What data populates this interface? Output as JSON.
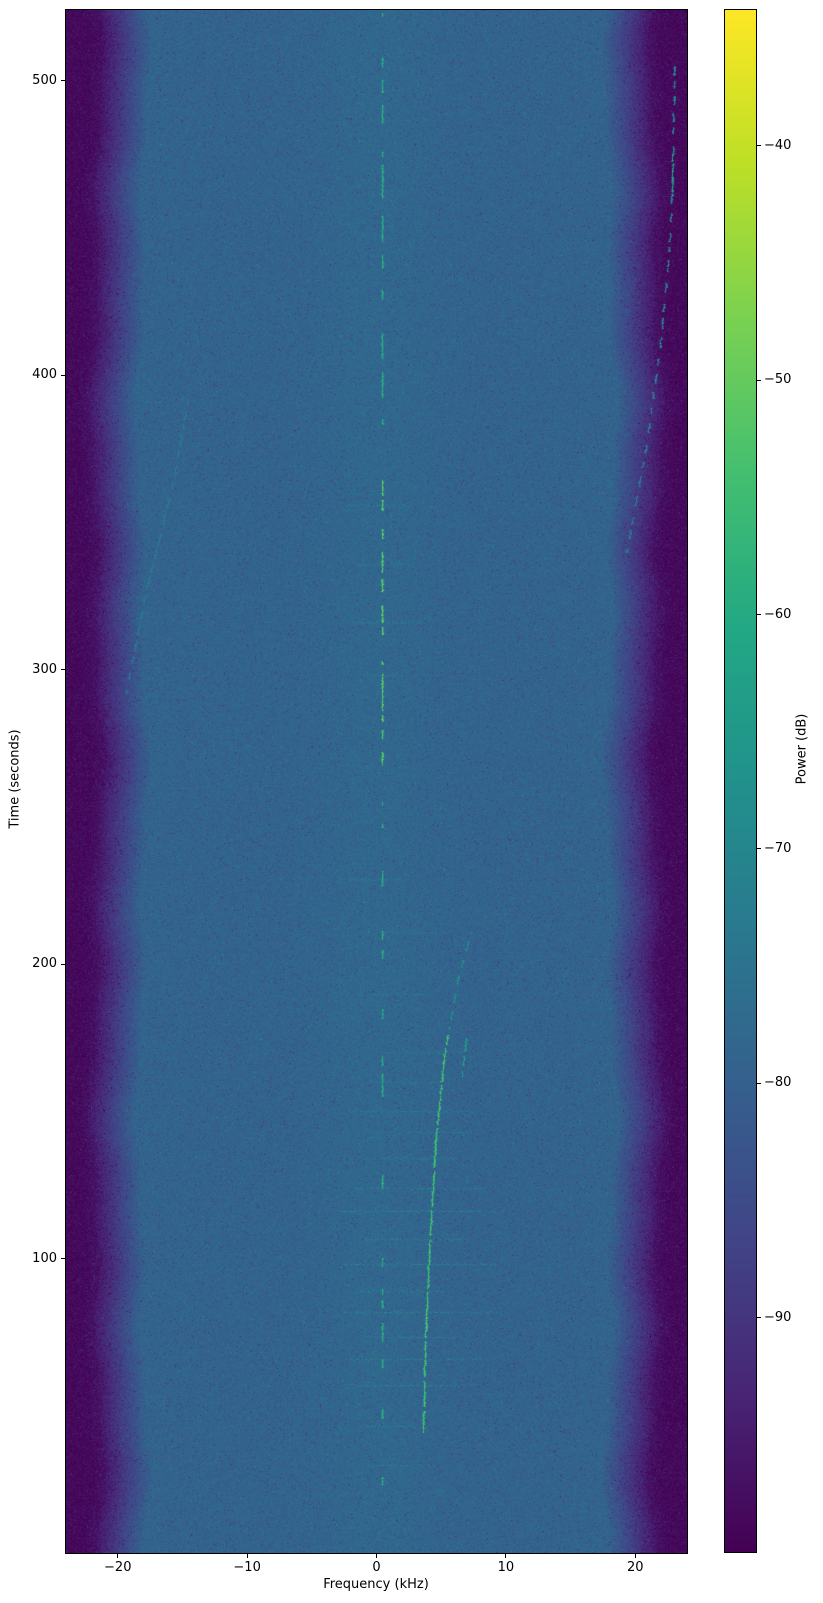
{
  "chart_data": {
    "type": "heatmap",
    "subtype": "spectrogram",
    "title": "",
    "xlabel": "Frequency (kHz)",
    "ylabel": "Time (seconds)",
    "xlim": [
      -24,
      24
    ],
    "ylim": [
      0,
      524
    ],
    "grid": false,
    "x_ticks": {
      "values": [
        -20,
        -10,
        0,
        10,
        20
      ],
      "labels": [
        "−20",
        "−10",
        "0",
        "10",
        "20"
      ]
    },
    "y_ticks": {
      "values": [
        100,
        200,
        300,
        400,
        500
      ],
      "labels": [
        "100",
        "200",
        "300",
        "400",
        "500"
      ]
    },
    "colorbar": {
      "label": "Power (dB)",
      "position": "right",
      "lim": [
        -100,
        -34.2
      ],
      "ticks": {
        "values": [
          -40,
          -50,
          -60,
          -70,
          -80,
          -90
        ],
        "labels": [
          "−40",
          "−50",
          "−60",
          "−70",
          "−80",
          "−90"
        ]
      },
      "colormap": "viridis"
    },
    "colormap_stops": [
      "#440154",
      "#482475",
      "#414487",
      "#355f8d",
      "#2a788e",
      "#21918c",
      "#22a884",
      "#44bf70",
      "#7ad151",
      "#bddf26",
      "#fde725"
    ],
    "noise": {
      "floor_db": -79,
      "sigma_db": 2.8,
      "passband_edge_khz": 18.0,
      "stopband_edge_khz": 21.6,
      "stopband_db": -96.5
    },
    "features": {
      "carrier_line": {
        "freq_khz": 0.45,
        "t_range_s": [
          2,
          523
        ],
        "db_bright": -51,
        "db_typical": -59,
        "bright_t_range_s": [
          268,
          368
        ]
      },
      "chirps": [
        {
          "name": "main-chirp",
          "db": -54,
          "jit": 6,
          "dash": [
            22,
            30,
            1,
            2
          ],
          "points": [
            [
              3.6,
              41
            ],
            [
              3.75,
              72
            ],
            [
              4.1,
              106
            ],
            [
              4.55,
              140
            ],
            [
              5.2,
              168
            ],
            [
              5.5,
              176
            ]
          ]
        },
        {
          "name": "main-chirp-continuation",
          "db": -67,
          "jit": 4,
          "dash": [
            4,
            6,
            3,
            6
          ],
          "points": [
            [
              5.6,
              178
            ],
            [
              6.3,
              196
            ],
            [
              7.3,
              211
            ]
          ]
        },
        {
          "name": "parallel-dash",
          "db": -64,
          "jit": 4,
          "dash": [
            6,
            8,
            2,
            4
          ],
          "points": [
            [
              6.6,
              162
            ],
            [
              6.9,
              175
            ]
          ]
        },
        {
          "name": "left-chirp",
          "db": -72,
          "jit": 3,
          "dash": [
            4,
            7,
            2,
            7
          ],
          "points": [
            [
              -19.4,
              292
            ],
            [
              -17.8,
              327
            ],
            [
              -15.7,
              364
            ],
            [
              -14.6,
              392
            ]
          ]
        },
        {
          "name": "right-chirp",
          "db": -71,
          "jit": 3,
          "dash": [
            4,
            7,
            3,
            8
          ],
          "points": [
            [
              19.3,
              340
            ],
            [
              20.8,
              375
            ],
            [
              21.9,
              410
            ],
            [
              22.6,
              442
            ],
            [
              22.9,
              470
            ],
            [
              23.0,
              505
            ]
          ]
        },
        {
          "name": "right-bright-dash",
          "db": -62,
          "jit": 3,
          "dash": [
            10,
            14,
            2,
            3
          ],
          "points": [
            [
              22.85,
              461
            ],
            [
              22.85,
              475
            ]
          ]
        }
      ],
      "sidebands": [
        [
          30,
          -1,
          4,
          -73
        ],
        [
          43,
          -0.8,
          3,
          -72
        ],
        [
          57,
          -1.5,
          7.5,
          -71
        ],
        [
          66,
          -2.3,
          8,
          -71
        ],
        [
          73.5,
          -1,
          6.5,
          -72
        ],
        [
          82,
          -2.5,
          9,
          -70
        ],
        [
          89,
          -1.8,
          5.5,
          -72
        ],
        [
          98,
          -2.5,
          9.5,
          -71
        ],
        [
          106.5,
          -1.2,
          7,
          -72
        ],
        [
          116,
          -3,
          9.8,
          -71
        ],
        [
          124,
          -2,
          8.5,
          -72
        ],
        [
          134,
          -1,
          6,
          -72
        ],
        [
          143,
          -0.5,
          7,
          -73
        ],
        [
          150,
          -2,
          8,
          -72
        ],
        [
          160,
          -1,
          5,
          -73
        ],
        [
          170,
          0,
          6.5,
          -73
        ],
        [
          190,
          -1.5,
          4,
          -74
        ],
        [
          211,
          0.5,
          5.5,
          -74
        ],
        [
          229,
          -2.8,
          2.4,
          -73
        ],
        [
          253,
          -1.5,
          1.5,
          -74
        ],
        [
          298,
          -1,
          2,
          -73
        ],
        [
          316,
          -2,
          3.5,
          -72
        ],
        [
          336,
          -1.5,
          2.5,
          -73
        ],
        [
          356,
          -2.5,
          3,
          -72
        ]
      ]
    }
  },
  "colors": {
    "background": "#ffffff",
    "text": "#000000",
    "spine": "#000000"
  }
}
